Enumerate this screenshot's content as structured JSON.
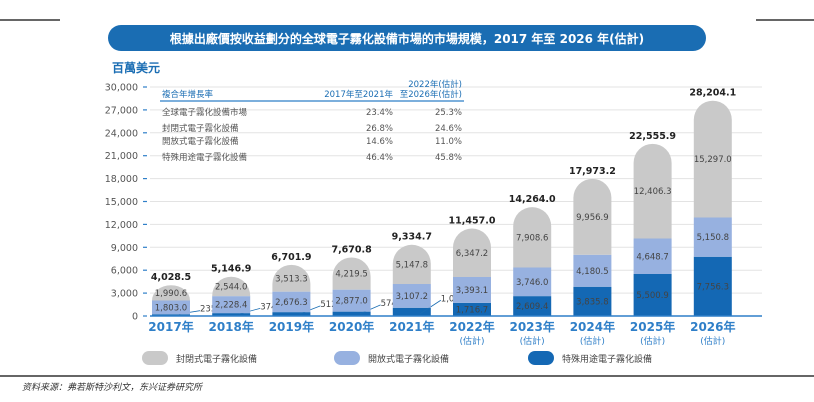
{
  "chart_data": {
    "type": "bar",
    "stacked": true,
    "title": "根據出廠價按收益劃分的全球電子霧化設備市場的市場規模，2017 年至 2026 年(估計)",
    "ylabel": "百萬美元",
    "ylim": [
      0,
      30000
    ],
    "yticks": [
      "0",
      "3,000",
      "6,000",
      "9,000",
      "12,000",
      "15,000",
      "18,000",
      "21,000",
      "24,000",
      "27,000",
      "30,000"
    ],
    "ytick_values": [
      0,
      3000,
      6000,
      9000,
      12000,
      15000,
      18000,
      21000,
      24000,
      27000,
      30000
    ],
    "grid": true,
    "legend_position": "bottom",
    "categories": [
      "2017年",
      "2018年",
      "2019年",
      "2020年",
      "2021年",
      "2022年",
      "2023年",
      "2024年",
      "2025年",
      "2026年"
    ],
    "category_notes": [
      "",
      "",
      "",
      "",
      "",
      "(估計)",
      "(估計)",
      "(估計)",
      "(估計)",
      "(估計)"
    ],
    "series": [
      {
        "name": "特殊用途電子霧化設備",
        "color": "#1468b4",
        "values": [
          235.0,
          374.5,
          512.3,
          574.3,
          1079.7,
          1716.7,
          2609.4,
          3835.8,
          5500.9,
          7756.3
        ],
        "labels": [
          "235.0",
          "374.5",
          "512.3",
          "574.3",
          "1,079.7",
          "1,716.7",
          "2,609.4",
          "3,835.8",
          "5,500.9",
          "7,756.3"
        ]
      },
      {
        "name": "開放式電子霧化設備",
        "color": "#97b1e0",
        "values": [
          1803.0,
          2228.4,
          2676.3,
          2877.0,
          3107.2,
          3393.1,
          3746.0,
          4180.5,
          4648.7,
          5150.8
        ],
        "labels": [
          "1,803.0",
          "2,228.4",
          "2,676.3",
          "2,877.0",
          "3,107.2",
          "3,393.1",
          "3,746.0",
          "4,180.5",
          "4,648.7",
          "5,150.8"
        ]
      },
      {
        "name": "封閉式電子霧化設備",
        "color": "#c9c9c9",
        "values": [
          1990.6,
          2544.0,
          3513.3,
          4219.5,
          5147.8,
          6347.2,
          7908.6,
          9956.9,
          12406.3,
          15297.0
        ],
        "labels": [
          "1,990.6",
          "2,544.0",
          "3,513.3",
          "4,219.5",
          "5,147.8",
          "6,347.2",
          "7,908.6",
          "9,956.9",
          "12,406.3",
          "15,297.0"
        ]
      }
    ],
    "totals": [
      4028.5,
      5146.9,
      6701.9,
      7670.8,
      9334.7,
      11457.0,
      14264.0,
      17973.2,
      22555.9,
      28204.1
    ],
    "total_labels": [
      "4,028.5",
      "5,146.9",
      "6,701.9",
      "7,670.8",
      "9,334.7",
      "11,457.0",
      "14,264.0",
      "17,973.2",
      "22,555.9",
      "28,204.1"
    ],
    "cagr_table": {
      "header": [
        "複合年增長率",
        "2017年至2021年",
        "2022年(估計)",
        "至2026年(估計)"
      ],
      "rows": [
        {
          "label": "全球電子霧化設備市場",
          "a": "23.4%",
          "b": "25.3%"
        },
        {
          "label": "封閉式電子霧化設備",
          "a": "26.8%",
          "b": "24.6%"
        },
        {
          "label": "開放式電子霧化設備",
          "a": "14.6%",
          "b": "11.0%"
        },
        {
          "label": "特殊用途電子霧化設備",
          "a": "46.4%",
          "b": "45.8%"
        }
      ]
    }
  },
  "colors": {
    "banner": "#1a6db3",
    "axis_blue": "#2f7fc8",
    "text": "#333333"
  },
  "source": "资料来源：弗若斯特沙利文，东兴证券研究所"
}
